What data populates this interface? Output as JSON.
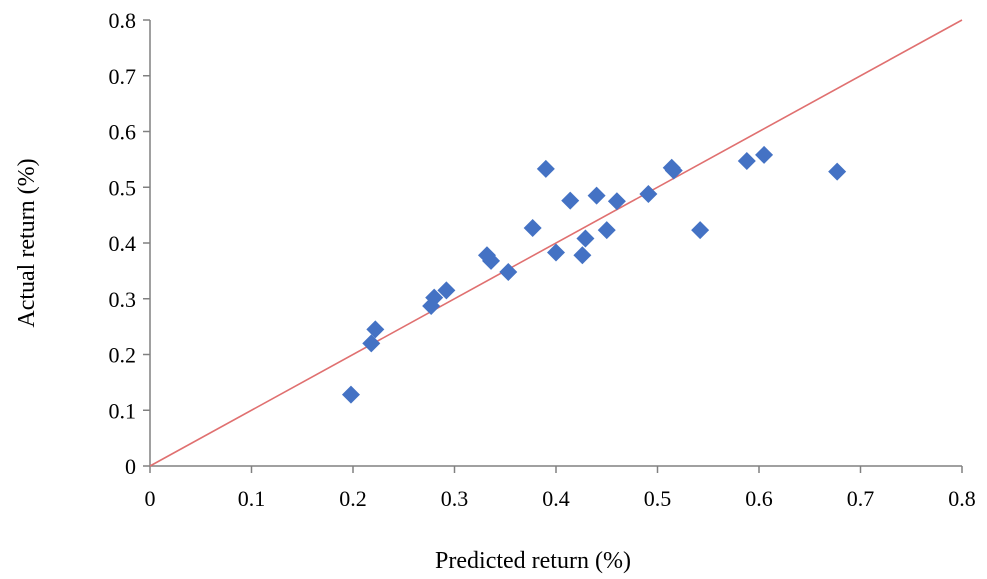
{
  "chart_data": {
    "type": "scatter",
    "xlabel": "Predicted return (%)",
    "ylabel": "Actual return (%)",
    "xlim": [
      0,
      0.8
    ],
    "ylim": [
      0,
      0.8
    ],
    "xticks": [
      "0",
      "0.1",
      "0.2",
      "0.3",
      "0.4",
      "0.5",
      "0.6",
      "0.7",
      "0.8"
    ],
    "yticks": [
      "0",
      "0.1",
      "0.2",
      "0.3",
      "0.4",
      "0.5",
      "0.6",
      "0.7",
      "0.8"
    ],
    "grid": false,
    "legend": "none",
    "marker_color": "#4472C4",
    "line_color": "#E07070",
    "reference_line": {
      "from": [
        0,
        0
      ],
      "to": [
        0.8,
        0.8
      ]
    },
    "points": [
      {
        "x": 0.198,
        "y": 0.128
      },
      {
        "x": 0.218,
        "y": 0.22
      },
      {
        "x": 0.222,
        "y": 0.245
      },
      {
        "x": 0.277,
        "y": 0.287
      },
      {
        "x": 0.28,
        "y": 0.302
      },
      {
        "x": 0.292,
        "y": 0.315
      },
      {
        "x": 0.332,
        "y": 0.378
      },
      {
        "x": 0.336,
        "y": 0.368
      },
      {
        "x": 0.353,
        "y": 0.348
      },
      {
        "x": 0.377,
        "y": 0.427
      },
      {
        "x": 0.39,
        "y": 0.533
      },
      {
        "x": 0.4,
        "y": 0.383
      },
      {
        "x": 0.414,
        "y": 0.476
      },
      {
        "x": 0.426,
        "y": 0.378
      },
      {
        "x": 0.429,
        "y": 0.408
      },
      {
        "x": 0.44,
        "y": 0.485
      },
      {
        "x": 0.45,
        "y": 0.423
      },
      {
        "x": 0.46,
        "y": 0.475
      },
      {
        "x": 0.491,
        "y": 0.488
      },
      {
        "x": 0.514,
        "y": 0.535
      },
      {
        "x": 0.516,
        "y": 0.53
      },
      {
        "x": 0.542,
        "y": 0.423
      },
      {
        "x": 0.588,
        "y": 0.547
      },
      {
        "x": 0.605,
        "y": 0.558
      },
      {
        "x": 0.677,
        "y": 0.528
      }
    ]
  }
}
